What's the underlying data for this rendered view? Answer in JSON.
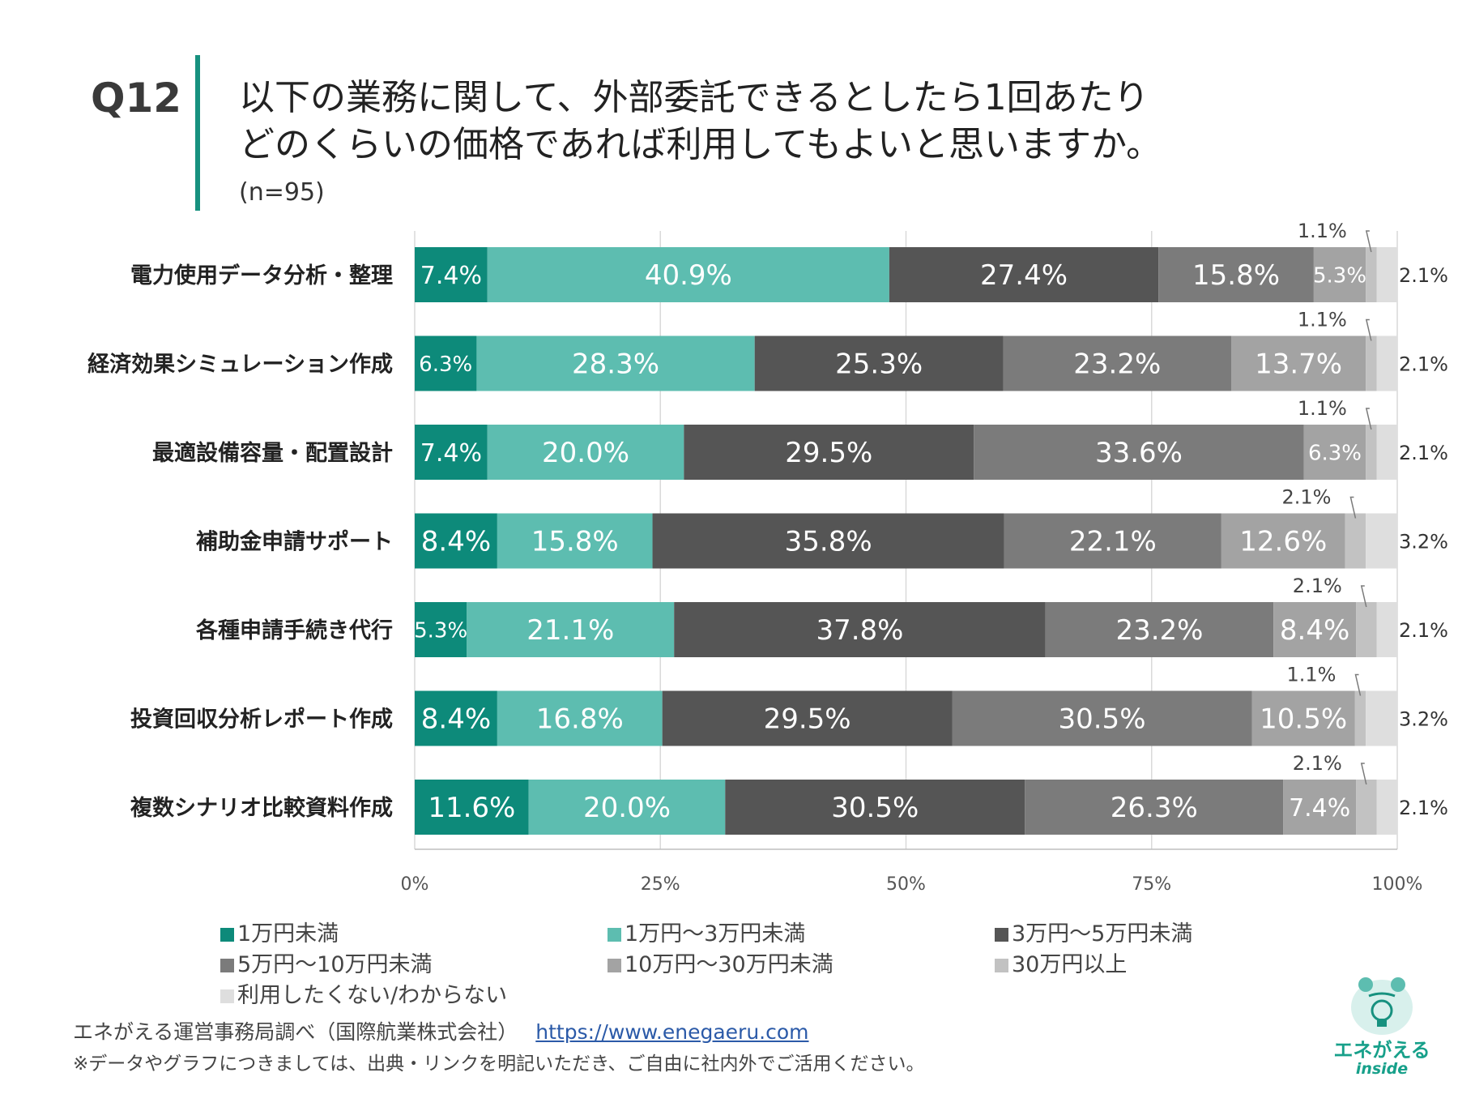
{
  "header": {
    "question_number": "Q12",
    "title_line1": "以下の業務に関して、外部委託できるとしたら1回あたり",
    "title_line2": "どのくらいの価格であれば利用してもよいと思いますか。",
    "sample_size": "(n=95)"
  },
  "colors": {
    "accent": "#17917f",
    "series": [
      "#0d8a7a",
      "#5dbdb0",
      "#555555",
      "#7b7b7b",
      "#a3a3a3",
      "#c2c2c2",
      "#dedede"
    ]
  },
  "chart_data": {
    "type": "bar",
    "orientation": "horizontal-stacked-100",
    "title": "以下の業務に関して、外部委託できるとしたら1回あたりどのくらいの価格であれば利用してもよいと思いますか。",
    "xlabel": "",
    "ylabel": "",
    "xlim": [
      0,
      100
    ],
    "x_ticks": [
      "0%",
      "25%",
      "50%",
      "75%",
      "100%"
    ],
    "grid": true,
    "legend_position": "bottom",
    "categories": [
      "電力使用データ分析・整理",
      "経済効果シミュレーション作成",
      "最適設備容量・配置設計",
      "補助金申請サポート",
      "各種申請手続き代行",
      "投資回収分析レポート作成",
      "複数シナリオ比較資料作成"
    ],
    "series": [
      {
        "name": "1万円未満",
        "values": [
          7.4,
          6.3,
          7.4,
          8.4,
          5.3,
          8.4,
          11.6
        ]
      },
      {
        "name": "1万円〜3万円未満",
        "values": [
          40.9,
          28.3,
          20.0,
          15.8,
          21.1,
          16.8,
          20.0
        ]
      },
      {
        "name": "3万円〜5万円未満",
        "values": [
          27.4,
          25.3,
          29.5,
          35.8,
          37.8,
          29.5,
          30.5
        ]
      },
      {
        "name": "5万円〜10万円未満",
        "values": [
          15.8,
          23.2,
          33.6,
          22.1,
          23.2,
          30.5,
          26.3
        ]
      },
      {
        "name": "10万円〜30万円未満",
        "values": [
          5.3,
          13.7,
          6.3,
          12.6,
          8.4,
          10.5,
          7.4
        ]
      },
      {
        "name": "30万円以上",
        "values": [
          1.1,
          1.1,
          1.1,
          2.1,
          2.1,
          1.1,
          2.1
        ]
      },
      {
        "name": "利用したくない/わからない",
        "values": [
          2.1,
          2.1,
          2.1,
          3.2,
          2.1,
          3.2,
          2.1
        ]
      }
    ],
    "value_labels": [
      [
        "7.4%",
        "40.9%",
        "27.4%",
        "15.8%",
        "5.3%",
        "1.1%",
        "2.1%"
      ],
      [
        "6.3%",
        "28.3%",
        "25.3%",
        "23.2%",
        "13.7%",
        "1.1%",
        "2.1%"
      ],
      [
        "7.4%",
        "20.0%",
        "29.5%",
        "33.6%",
        "6.3%",
        "1.1%",
        "2.1%"
      ],
      [
        "8.4%",
        "15.8%",
        "35.8%",
        "22.1%",
        "12.6%",
        "2.1%",
        "3.2%"
      ],
      [
        "5.3%",
        "21.1%",
        "37.8%",
        "23.2%",
        "8.4%",
        "2.1%",
        "2.1%"
      ],
      [
        "8.4%",
        "16.8%",
        "29.5%",
        "30.5%",
        "10.5%",
        "1.1%",
        "3.2%"
      ],
      [
        "11.6%",
        "20.0%",
        "30.5%",
        "26.3%",
        "7.4%",
        "2.1%",
        "2.1%"
      ]
    ]
  },
  "footer": {
    "source_text": "エネがえる運営事務局調べ（国際航業株式会社）",
    "source_url": "https://www.enegaeru.com",
    "note": "※データやグラフにつきましては、出典・リンクを明記いただき、ご自由に社内外でご活用ください。",
    "logo_text": "エネがえる",
    "logo_sub": "inside"
  }
}
